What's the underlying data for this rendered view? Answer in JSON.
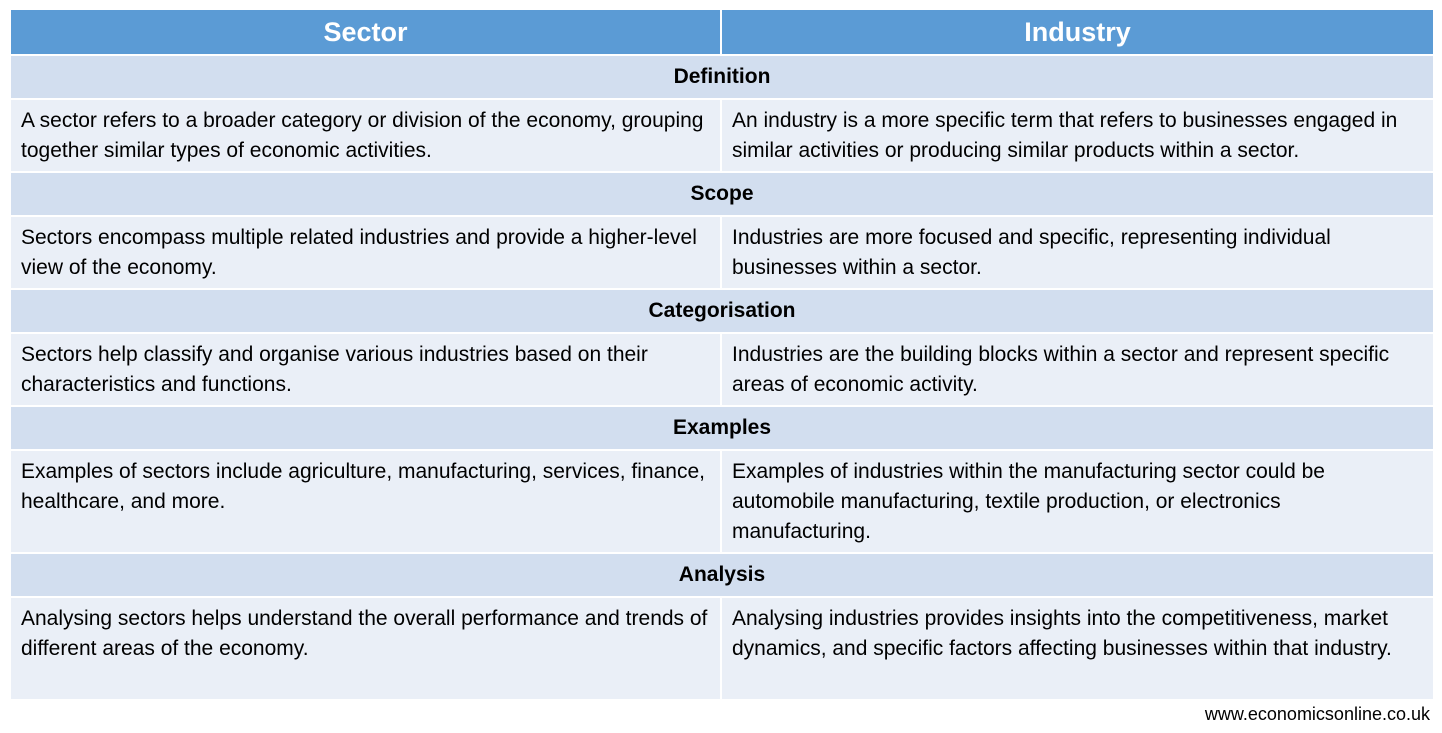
{
  "header": {
    "sector": "Sector",
    "industry": "Industry"
  },
  "rows": [
    {
      "category": "Definition",
      "sector": "A sector refers to a broader category or division of the economy, grouping together similar types of economic activities.",
      "industry": "An industry is a more specific term that refers to businesses engaged in similar activities or producing similar products within a sector."
    },
    {
      "category": "Scope",
      "sector": "Sectors encompass multiple related industries and provide a higher-level view of the economy.",
      "industry": "Industries are more focused and specific, representing individual businesses within a sector."
    },
    {
      "category": "Categorisation",
      "sector": "Sectors help classify and organise various industries based on their characteristics and functions.",
      "industry": "Industries are the building blocks within a sector and represent specific areas of economic activity."
    },
    {
      "category": "Examples",
      "sector": "Examples of sectors include agriculture, manufacturing, services, finance, healthcare, and more.",
      "industry": "Examples of industries within the manufacturing sector could be automobile manufacturing, textile production, or electronics manufacturing."
    },
    {
      "category": "Analysis",
      "sector": "Analysing sectors helps understand the overall performance and trends of different areas of the economy.",
      "industry": "Analysing industries provides insights into the competitiveness, market dynamics, and specific factors affecting businesses within that industry."
    }
  ],
  "footer": {
    "source": "www.economicsonline.co.uk"
  }
}
